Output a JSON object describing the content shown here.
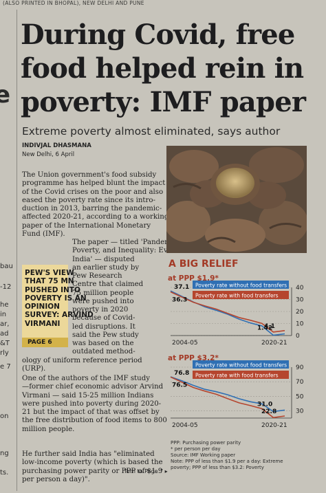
{
  "paper": {
    "top_strip": "(ALSO PRINTED IN BHOPAL), NEW DELHI AND PUNE"
  },
  "left_strip": [
    "e",
    "bau",
    "-12",
    "he",
    "in",
    "ar,",
    "ad",
    "&T",
    "rly",
    "e 7",
    "on",
    "ng",
    "ts."
  ],
  "article": {
    "headline": [
      "During Covid, free",
      "food helped rein in",
      "poverty: IMF paper"
    ],
    "subhead": "Extreme poverty almost eliminated, says author",
    "byline": "Indivjal Dhasmana",
    "dateline": "New Delhi, 6 April",
    "para1": [
      "The Union government's food subsidy",
      "programme has helped blunt the impact",
      "of the Covid crises on the poor and also",
      "eased the poverty rate since its intro-",
      "duction in 2013, barring the pandemic-",
      "affected 2020-21, according to a working",
      "paper of the International Monetary",
      "Fund (IMF)."
    ],
    "para2": [
      "The paper — titled 'Pandemic,",
      "Poverty, and Inequality: Evidence from",
      "India' — disputed",
      "an earlier study by",
      "Pew Research",
      "Centre that claimed",
      "75 million people",
      "were pushed into",
      "poverty in 2020",
      "because of Covid-",
      "led disruptions. It",
      "said the Pew study",
      "was based on the",
      "outdated method-"
    ],
    "para2_end": [
      "ology of uniform reference period",
      "(URP)."
    ],
    "para3": [
      "One of the authors of the IMF study",
      "—former chief economic advisor Arvind",
      "Virmani — said 15-25 million Indians",
      "were pushed into poverty during 2020-",
      "21 but the impact of that was offset by",
      "the free distribution of food items to 800",
      "million people."
    ],
    "para4": [
      "He further said India has \"eliminated",
      "low-income poverty (which is based the",
      "purchasing power parity or PPP of $1.9",
      "per person a day)\"."
    ],
    "turn": "Turn to Page 7 ▸"
  },
  "pullquote": {
    "lines": [
      "PEW'S VIEW",
      "THAT 75 MN",
      "PUSHED INTO",
      "POVERTY IS AN",
      "OPINION",
      "SURVEY: ARVIND",
      "VIRMANI"
    ],
    "page": "PAGE 6"
  },
  "photo": {
    "description_icon": "hands-holding-grain-photo"
  },
  "chart_data": [
    {
      "type": "line",
      "title": "A BIG RELIEF",
      "subtitle": "at PPP $1.9*",
      "x": [
        "2004-05",
        "2020-21"
      ],
      "y_ticks": [
        0,
        10,
        20,
        30,
        40
      ],
      "ylim": [
        0,
        40
      ],
      "series": [
        {
          "name": "Poverty rate without food transfers",
          "color": "#2f6fb3",
          "start": 37.1,
          "end": 1.42
        },
        {
          "name": "Poverty rate with food transfers",
          "color": "#b5452e",
          "start": 36.3,
          "end": 4.1
        }
      ],
      "labels": [
        "37.1",
        "36.3",
        "1.42",
        "4.1"
      ]
    },
    {
      "type": "line",
      "subtitle": "at PPP $3.2*",
      "x": [
        "2004-05",
        "2020-21"
      ],
      "y_ticks": [
        30,
        50,
        70,
        90
      ],
      "ylim": [
        20,
        90
      ],
      "series": [
        {
          "name": "Poverty rate without food transfers",
          "color": "#2f6fb3",
          "start": 76.8,
          "end": 31.0
        },
        {
          "name": "Poverty rate with food transfers",
          "color": "#b5452e",
          "start": 76.5,
          "end": 22.8
        }
      ],
      "labels": [
        "76.8",
        "76.5",
        "31.0",
        "22.8"
      ]
    }
  ],
  "chart_notes": [
    "PPP: Purchasing power parity",
    "* per person per day",
    "Source: IMF Working paper",
    "Note: PPP of less than $1.9 per a day: Extreme",
    "poverty; PPP of less than $3.2: Poverty"
  ],
  "colors": {
    "headline": "#1d1d1f",
    "accent": "#a33a26",
    "blue_series": "#2f6fb3",
    "red_series": "#b5452e",
    "pullquote_bg": "#ecd89a"
  }
}
